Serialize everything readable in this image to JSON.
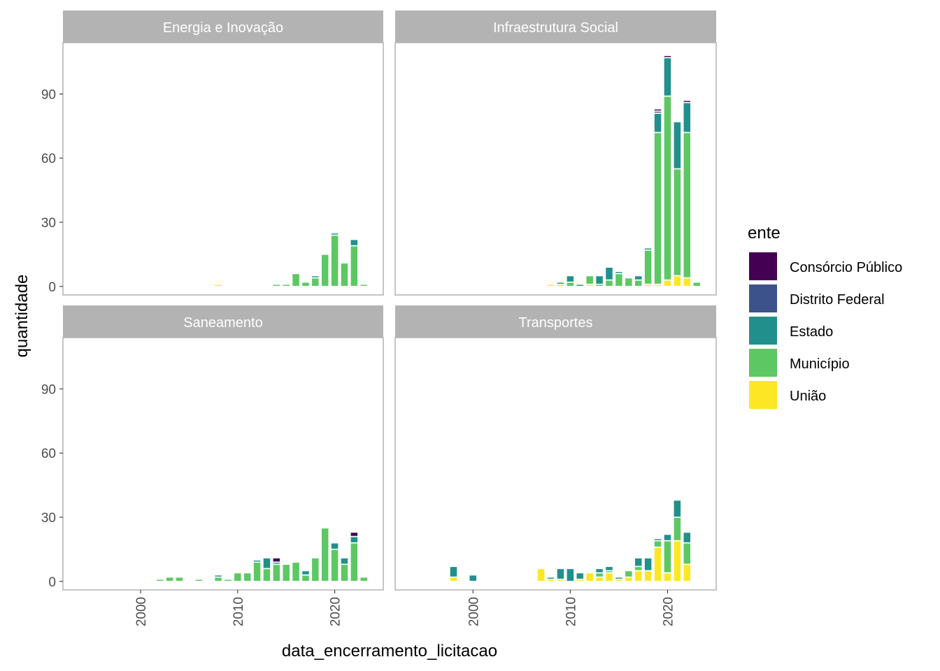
{
  "chart_data": {
    "type": "bar",
    "stacked": true,
    "xlabel": "data_encerramento_licitacao",
    "ylabel": "quantidade",
    "x_range": [
      1992,
      2025
    ],
    "y_range": [
      -4,
      114
    ],
    "x_ticks": [
      2000,
      2010,
      2020
    ],
    "y_ticks": [
      0,
      30,
      60,
      90
    ],
    "legend": {
      "title": "ente",
      "placement": "right",
      "entries": [
        {
          "key": "consorcio",
          "label": "Consórcio Público",
          "color": "#440154"
        },
        {
          "key": "df",
          "label": "Distrito Federal",
          "color": "#3B528B"
        },
        {
          "key": "estado",
          "label": "Estado",
          "color": "#21908C"
        },
        {
          "key": "municipio",
          "label": "Município",
          "color": "#5DC863"
        },
        {
          "key": "uniao",
          "label": "União",
          "color": "#FDE725"
        }
      ]
    },
    "stack_order": [
      "uniao",
      "municipio",
      "estado",
      "df",
      "consorcio"
    ],
    "panels": [
      {
        "title": "Energia e Inovação",
        "bars": [
          {
            "x": 2008,
            "uniao": 1
          },
          {
            "x": 2014,
            "municipio": 1
          },
          {
            "x": 2015,
            "municipio": 1
          },
          {
            "x": 2016,
            "municipio": 6
          },
          {
            "x": 2017,
            "municipio": 2
          },
          {
            "x": 2018,
            "municipio": 4,
            "estado": 1
          },
          {
            "x": 2019,
            "municipio": 15
          },
          {
            "x": 2020,
            "municipio": 24,
            "estado": 1
          },
          {
            "x": 2021,
            "municipio": 11
          },
          {
            "x": 2022,
            "municipio": 19,
            "estado": 3,
            "df": 0.5,
            "consorcio": 0.5
          },
          {
            "x": 2023,
            "municipio": 1
          }
        ]
      },
      {
        "title": "Infraestrutura Social",
        "bars": [
          {
            "x": 2008,
            "uniao": 1
          },
          {
            "x": 2009,
            "uniao": 1,
            "estado": 1
          },
          {
            "x": 2010,
            "municipio": 2,
            "estado": 3
          },
          {
            "x": 2011,
            "estado": 1
          },
          {
            "x": 2012,
            "uniao": 1,
            "municipio": 4
          },
          {
            "x": 2013,
            "municipio": 1,
            "estado": 4
          },
          {
            "x": 2014,
            "municipio": 3,
            "estado": 6
          },
          {
            "x": 2015,
            "municipio": 6,
            "estado": 1
          },
          {
            "x": 2016,
            "municipio": 4
          },
          {
            "x": 2017,
            "municipio": 3,
            "estado": 2
          },
          {
            "x": 2018,
            "uniao": 1,
            "municipio": 16,
            "estado": 1,
            "df": 0.5,
            "consorcio": 0.5
          },
          {
            "x": 2019,
            "uniao": 1,
            "municipio": 71,
            "estado": 9,
            "df": 1,
            "consorcio": 1
          },
          {
            "x": 2020,
            "uniao": 3,
            "municipio": 86,
            "estado": 18,
            "consorcio": 1
          },
          {
            "x": 2021,
            "uniao": 5,
            "municipio": 50,
            "estado": 22
          },
          {
            "x": 2022,
            "uniao": 4,
            "municipio": 68,
            "estado": 14,
            "consorcio": 1
          },
          {
            "x": 2023,
            "municipio": 2
          }
        ]
      },
      {
        "title": "Saneamento",
        "bars": [
          {
            "x": 2002,
            "municipio": 1
          },
          {
            "x": 2003,
            "municipio": 2
          },
          {
            "x": 2004,
            "municipio": 2
          },
          {
            "x": 2006,
            "municipio": 1
          },
          {
            "x": 2008,
            "municipio": 2,
            "estado": 1
          },
          {
            "x": 2009,
            "municipio": 1
          },
          {
            "x": 2010,
            "municipio": 4
          },
          {
            "x": 2011,
            "municipio": 4
          },
          {
            "x": 2012,
            "municipio": 9,
            "estado": 1
          },
          {
            "x": 2013,
            "municipio": 6,
            "estado": 5
          },
          {
            "x": 2014,
            "municipio": 8,
            "estado": 1,
            "consorcio": 2
          },
          {
            "x": 2015,
            "municipio": 8
          },
          {
            "x": 2016,
            "municipio": 9
          },
          {
            "x": 2017,
            "municipio": 3,
            "estado": 2
          },
          {
            "x": 2018,
            "municipio": 11
          },
          {
            "x": 2019,
            "municipio": 25
          },
          {
            "x": 2020,
            "municipio": 15,
            "estado": 3
          },
          {
            "x": 2021,
            "municipio": 8,
            "estado": 3
          },
          {
            "x": 2022,
            "municipio": 18,
            "estado": 3,
            "consorcio": 2
          },
          {
            "x": 2023,
            "municipio": 2
          }
        ]
      },
      {
        "title": "Transportes",
        "bars": [
          {
            "x": 1994,
            "uniao": 0.5
          },
          {
            "x": 1995,
            "uniao": 0.5
          },
          {
            "x": 1996,
            "estado": 0.5
          },
          {
            "x": 1998,
            "uniao": 2,
            "estado": 5
          },
          {
            "x": 1999,
            "estado": 0.5
          },
          {
            "x": 2000,
            "estado": 3
          },
          {
            "x": 2006,
            "estado": 0.5
          },
          {
            "x": 2007,
            "uniao": 6
          },
          {
            "x": 2008,
            "uniao": 1,
            "estado": 1
          },
          {
            "x": 2009,
            "uniao": 1,
            "estado": 5
          },
          {
            "x": 2010,
            "estado": 6
          },
          {
            "x": 2011,
            "uniao": 1,
            "estado": 3
          },
          {
            "x": 2012,
            "uniao": 4
          },
          {
            "x": 2013,
            "uniao": 2,
            "municipio": 2,
            "estado": 2
          },
          {
            "x": 2014,
            "uniao": 4,
            "municipio": 1,
            "estado": 2
          },
          {
            "x": 2015,
            "uniao": 1,
            "estado": 1
          },
          {
            "x": 2016,
            "uniao": 2,
            "municipio": 3
          },
          {
            "x": 2017,
            "uniao": 5,
            "municipio": 2,
            "estado": 4
          },
          {
            "x": 2018,
            "uniao": 5,
            "estado": 6
          },
          {
            "x": 2019,
            "uniao": 16,
            "municipio": 3,
            "estado": 1
          },
          {
            "x": 2020,
            "uniao": 4,
            "municipio": 15,
            "estado": 3
          },
          {
            "x": 2021,
            "uniao": 19,
            "municipio": 11,
            "estado": 8
          },
          {
            "x": 2022,
            "uniao": 8,
            "municipio": 10,
            "estado": 5
          }
        ]
      }
    ]
  }
}
